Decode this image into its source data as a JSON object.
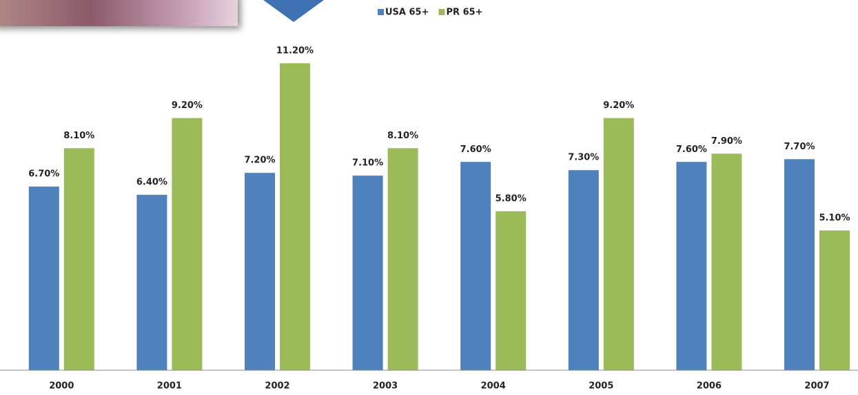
{
  "chart_data": {
    "type": "bar",
    "categories": [
      "2000",
      "2001",
      "2002",
      "2003",
      "2004",
      "2005",
      "2006",
      "2007"
    ],
    "series": [
      {
        "name": "USA 65+",
        "color": "#4f81bd",
        "values": [
          6.7,
          6.4,
          7.2,
          7.1,
          7.6,
          7.3,
          7.6,
          7.7
        ],
        "value_labels": [
          "6.70%",
          "6.40%",
          "7.20%",
          "7.10%",
          "7.60%",
          "7.30%",
          "7.60%",
          "7.70%"
        ]
      },
      {
        "name": "PR 65+",
        "color": "#9bbb59",
        "values": [
          8.1,
          9.2,
          11.2,
          8.1,
          5.8,
          9.2,
          7.9,
          5.1
        ],
        "value_labels": [
          "8.10%",
          "9.20%",
          "11.20%",
          "8.10%",
          "5.80%",
          "9.20%",
          "7.90%",
          "5.10%"
        ]
      }
    ],
    "ylim": [
      0,
      12
    ],
    "legend": "top"
  }
}
